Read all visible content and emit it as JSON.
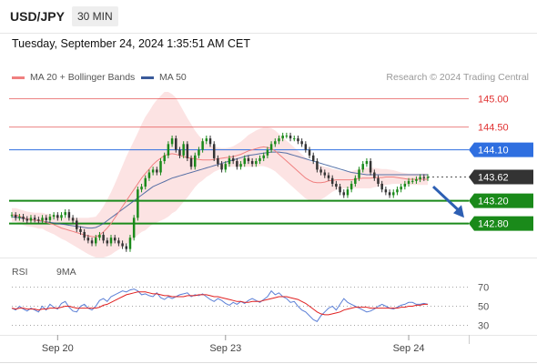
{
  "header": {
    "symbol": "USD/JPY",
    "timeframe": "30 MIN"
  },
  "datetime": "Tuesday, September 24, 2024 1:35:51 AM CET",
  "legend": {
    "ma20": {
      "label": "MA 20 + Bollinger Bands",
      "color": "#f08080"
    },
    "ma50": {
      "label": "MA 50",
      "color": "#3a5a9a"
    }
  },
  "credit": "Research © 2024 Trading Central",
  "rsi_legend": {
    "rsi": {
      "label": "RSI",
      "color": "#5b7fd6"
    },
    "ma9": {
      "label": "9MA",
      "color": "#e02020"
    }
  },
  "chart_data": [
    {
      "type": "candlestick",
      "ylim": [
        142.2,
        145.2
      ],
      "x_ticks": [
        "Sep 20",
        "Sep 23",
        "Sep 24"
      ],
      "price_levels": [
        {
          "label": "145.00",
          "value": 145.0,
          "kind": "resistance",
          "color": "#e03030"
        },
        {
          "label": "144.50",
          "value": 144.5,
          "kind": "resistance",
          "color": "#e03030"
        },
        {
          "label": "144.10",
          "value": 144.1,
          "kind": "pivot",
          "color": "#2f6fe0"
        },
        {
          "label": "143.62",
          "value": 143.62,
          "kind": "last",
          "color": "#333333"
        },
        {
          "label": "143.20",
          "value": 143.2,
          "kind": "support",
          "color": "#1a8a1a"
        },
        {
          "label": "142.80",
          "value": 142.8,
          "kind": "support",
          "color": "#1a8a1a"
        }
      ],
      "close": [
        142.95,
        142.9,
        142.92,
        142.88,
        142.85,
        142.9,
        142.87,
        142.85,
        142.9,
        142.86,
        142.92,
        142.95,
        142.9,
        142.95,
        143.0,
        142.9,
        142.85,
        142.7,
        142.65,
        142.55,
        142.5,
        142.45,
        142.55,
        142.6,
        142.5,
        142.45,
        142.55,
        142.5,
        142.45,
        142.4,
        142.35,
        142.55,
        142.9,
        143.4,
        143.45,
        143.6,
        143.7,
        143.75,
        143.7,
        143.9,
        144.0,
        144.2,
        144.3,
        144.1,
        144.0,
        144.2,
        143.95,
        143.8,
        144.0,
        144.1,
        144.25,
        144.3,
        144.2,
        143.95,
        143.85,
        143.75,
        143.85,
        143.95,
        143.9,
        143.8,
        143.85,
        143.95,
        143.9,
        143.85,
        143.9,
        143.95,
        144.0,
        144.1,
        144.2,
        144.25,
        144.3,
        144.35,
        144.35,
        144.3,
        144.3,
        144.25,
        144.2,
        144.1,
        144.0,
        143.9,
        143.75,
        143.7,
        143.65,
        143.6,
        143.5,
        143.45,
        143.35,
        143.3,
        143.4,
        143.5,
        143.6,
        143.75,
        143.85,
        143.9,
        143.7,
        143.6,
        143.5,
        143.4,
        143.35,
        143.3,
        143.35,
        143.4,
        143.45,
        143.5,
        143.55,
        143.55,
        143.58,
        143.62,
        143.6,
        143.62
      ],
      "ma20": [
        142.95,
        142.95,
        142.93,
        142.9,
        142.88,
        142.87,
        142.86,
        142.85,
        142.85,
        142.82,
        142.8,
        142.78,
        142.75,
        142.72,
        142.7,
        142.68,
        142.66,
        142.64,
        142.62,
        142.6,
        142.58,
        142.57,
        142.56,
        142.6,
        142.65,
        142.72,
        142.8,
        142.9,
        143.0,
        143.1,
        143.2,
        143.3,
        143.4,
        143.5,
        143.6,
        143.68,
        143.76,
        143.84,
        143.9,
        143.95,
        144.0,
        144.02,
        144.03,
        144.02,
        144.0,
        143.98,
        143.96,
        143.95,
        143.94,
        143.93,
        143.92,
        143.92,
        143.92,
        143.93,
        143.94,
        143.95,
        143.96,
        143.97,
        143.98,
        144.0,
        144.02,
        144.05,
        144.08,
        144.1,
        144.12,
        144.14,
        144.15,
        144.14,
        144.12,
        144.08,
        144.02,
        143.96,
        143.9,
        143.84,
        143.78,
        143.72,
        143.66,
        143.6,
        143.56,
        143.53,
        143.52,
        143.52,
        143.53,
        143.55,
        143.56,
        143.57,
        143.57,
        143.57,
        143.57,
        143.57,
        143.58,
        143.59,
        143.6,
        143.6,
        143.6,
        143.61,
        143.61,
        143.61,
        143.62,
        143.62,
        143.62,
        143.61,
        143.6,
        143.59,
        143.58,
        143.58,
        143.58,
        143.58,
        143.58,
        143.58
      ],
      "ma50": [
        142.92,
        142.91,
        142.9,
        142.89,
        142.88,
        142.87,
        142.86,
        142.85,
        142.84,
        142.83,
        142.82,
        142.81,
        142.8,
        142.79,
        142.78,
        142.77,
        142.76,
        142.75,
        142.74,
        142.73,
        142.72,
        142.72,
        142.73,
        142.76,
        142.8,
        142.85,
        142.9,
        142.95,
        143.0,
        143.05,
        143.1,
        143.15,
        143.2,
        143.25,
        143.3,
        143.35,
        143.4,
        143.45,
        143.48,
        143.51,
        143.54,
        143.57,
        143.6,
        143.62,
        143.64,
        143.66,
        143.68,
        143.7,
        143.72,
        143.74,
        143.76,
        143.78,
        143.8,
        143.82,
        143.84,
        143.86,
        143.88,
        143.9,
        143.92,
        143.94,
        143.96,
        143.98,
        144.0,
        144.01,
        144.02,
        144.03,
        144.04,
        144.05,
        144.06,
        144.06,
        144.06,
        144.05,
        144.04,
        144.02,
        144.0,
        143.98,
        143.96,
        143.94,
        143.92,
        143.9,
        143.88,
        143.86,
        143.84,
        143.82,
        143.8,
        143.78,
        143.76,
        143.74,
        143.72,
        143.7,
        143.69,
        143.68,
        143.67,
        143.66,
        143.66,
        143.66,
        143.66,
        143.66,
        143.66,
        143.66,
        143.66,
        143.66,
        143.66,
        143.66,
        143.66,
        143.66,
        143.66,
        143.66,
        143.66,
        143.66
      ],
      "bb_width": [
        0.12,
        0.12,
        0.12,
        0.13,
        0.13,
        0.13,
        0.13,
        0.14,
        0.14,
        0.15,
        0.16,
        0.17,
        0.18,
        0.19,
        0.2,
        0.22,
        0.24,
        0.26,
        0.28,
        0.3,
        0.32,
        0.34,
        0.36,
        0.4,
        0.45,
        0.5,
        0.55,
        0.6,
        0.66,
        0.72,
        0.78,
        0.82,
        0.86,
        0.9,
        0.95,
        1.0,
        1.02,
        1.05,
        1.08,
        1.1,
        1.12,
        1.1,
        1.05,
        1.0,
        0.9,
        0.8,
        0.7,
        0.6,
        0.5,
        0.42,
        0.36,
        0.3,
        0.26,
        0.22,
        0.2,
        0.18,
        0.17,
        0.17,
        0.18,
        0.2,
        0.22,
        0.25,
        0.28,
        0.3,
        0.32,
        0.33,
        0.34,
        0.35,
        0.36,
        0.36,
        0.36,
        0.36,
        0.36,
        0.36,
        0.36,
        0.36,
        0.36,
        0.36,
        0.35,
        0.34,
        0.33,
        0.3,
        0.27,
        0.24,
        0.2,
        0.18,
        0.16,
        0.15,
        0.15,
        0.15,
        0.16,
        0.17,
        0.18,
        0.18,
        0.18,
        0.17,
        0.16,
        0.15,
        0.14,
        0.13,
        0.12,
        0.11,
        0.1,
        0.1,
        0.1,
        0.1,
        0.1,
        0.1,
        0.1,
        0.1
      ]
    },
    {
      "type": "line",
      "ylim": [
        20,
        80
      ],
      "y_ticks": [
        {
          "label": "70",
          "value": 70
        },
        {
          "label": "50",
          "value": 50
        },
        {
          "label": "30",
          "value": 30
        }
      ],
      "rsi": [
        48,
        46,
        50,
        47,
        45,
        48,
        46,
        44,
        50,
        46,
        52,
        49,
        47,
        53,
        55,
        49,
        45,
        44,
        50,
        52,
        48,
        46,
        50,
        56,
        58,
        55,
        60,
        62,
        64,
        66,
        65,
        67,
        68,
        66,
        62,
        63,
        61,
        60,
        64,
        59,
        57,
        60,
        58,
        60,
        62,
        63,
        64,
        60,
        62,
        61,
        63,
        60,
        57,
        55,
        58,
        56,
        53,
        51,
        54,
        52,
        55,
        53,
        56,
        58,
        56,
        54,
        57,
        60,
        66,
        62,
        64,
        60,
        58,
        54,
        55,
        50,
        46,
        44,
        40,
        36,
        34,
        40,
        44,
        48,
        50,
        46,
        52,
        58,
        54,
        52,
        50,
        48,
        46,
        44,
        45,
        47,
        50,
        52,
        50,
        48,
        47,
        49,
        51,
        52,
        54,
        54,
        52,
        52,
        53,
        52
      ],
      "ma9": [
        48,
        47,
        48,
        48,
        47,
        47,
        47,
        46,
        47,
        47,
        48,
        48,
        48,
        49,
        50,
        50,
        49,
        48,
        48,
        48,
        48,
        48,
        48,
        49,
        51,
        52,
        54,
        56,
        58,
        60,
        62,
        63,
        64,
        65,
        65,
        65,
        64,
        63,
        63,
        62,
        61,
        61,
        60,
        60,
        60,
        60,
        61,
        61,
        61,
        62,
        62,
        62,
        61,
        60,
        60,
        59,
        58,
        57,
        56,
        55,
        55,
        54,
        54,
        55,
        55,
        55,
        56,
        57,
        58,
        59,
        60,
        60,
        60,
        59,
        58,
        57,
        55,
        53,
        50,
        47,
        44,
        42,
        41,
        41,
        42,
        43,
        44,
        46,
        47,
        48,
        49,
        49,
        49,
        49,
        48,
        48,
        48,
        48,
        48,
        48,
        48,
        48,
        49,
        49,
        50,
        50,
        51,
        51,
        52,
        52
      ],
      "x_ticks": [
        "Sep 20",
        "Sep 23",
        "Sep 24"
      ]
    }
  ]
}
